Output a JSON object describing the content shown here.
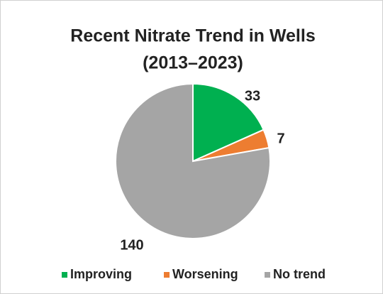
{
  "chart_data": {
    "type": "pie",
    "title": [
      "Recent Nitrate Trend in Wells",
      "(2013–2023)"
    ],
    "categories": [
      "Improving",
      "Worsening",
      "No trend"
    ],
    "values": [
      33,
      7,
      140
    ],
    "colors": [
      "#00b050",
      "#ed7d31",
      "#a5a5a5"
    ],
    "legend": "bottom"
  }
}
